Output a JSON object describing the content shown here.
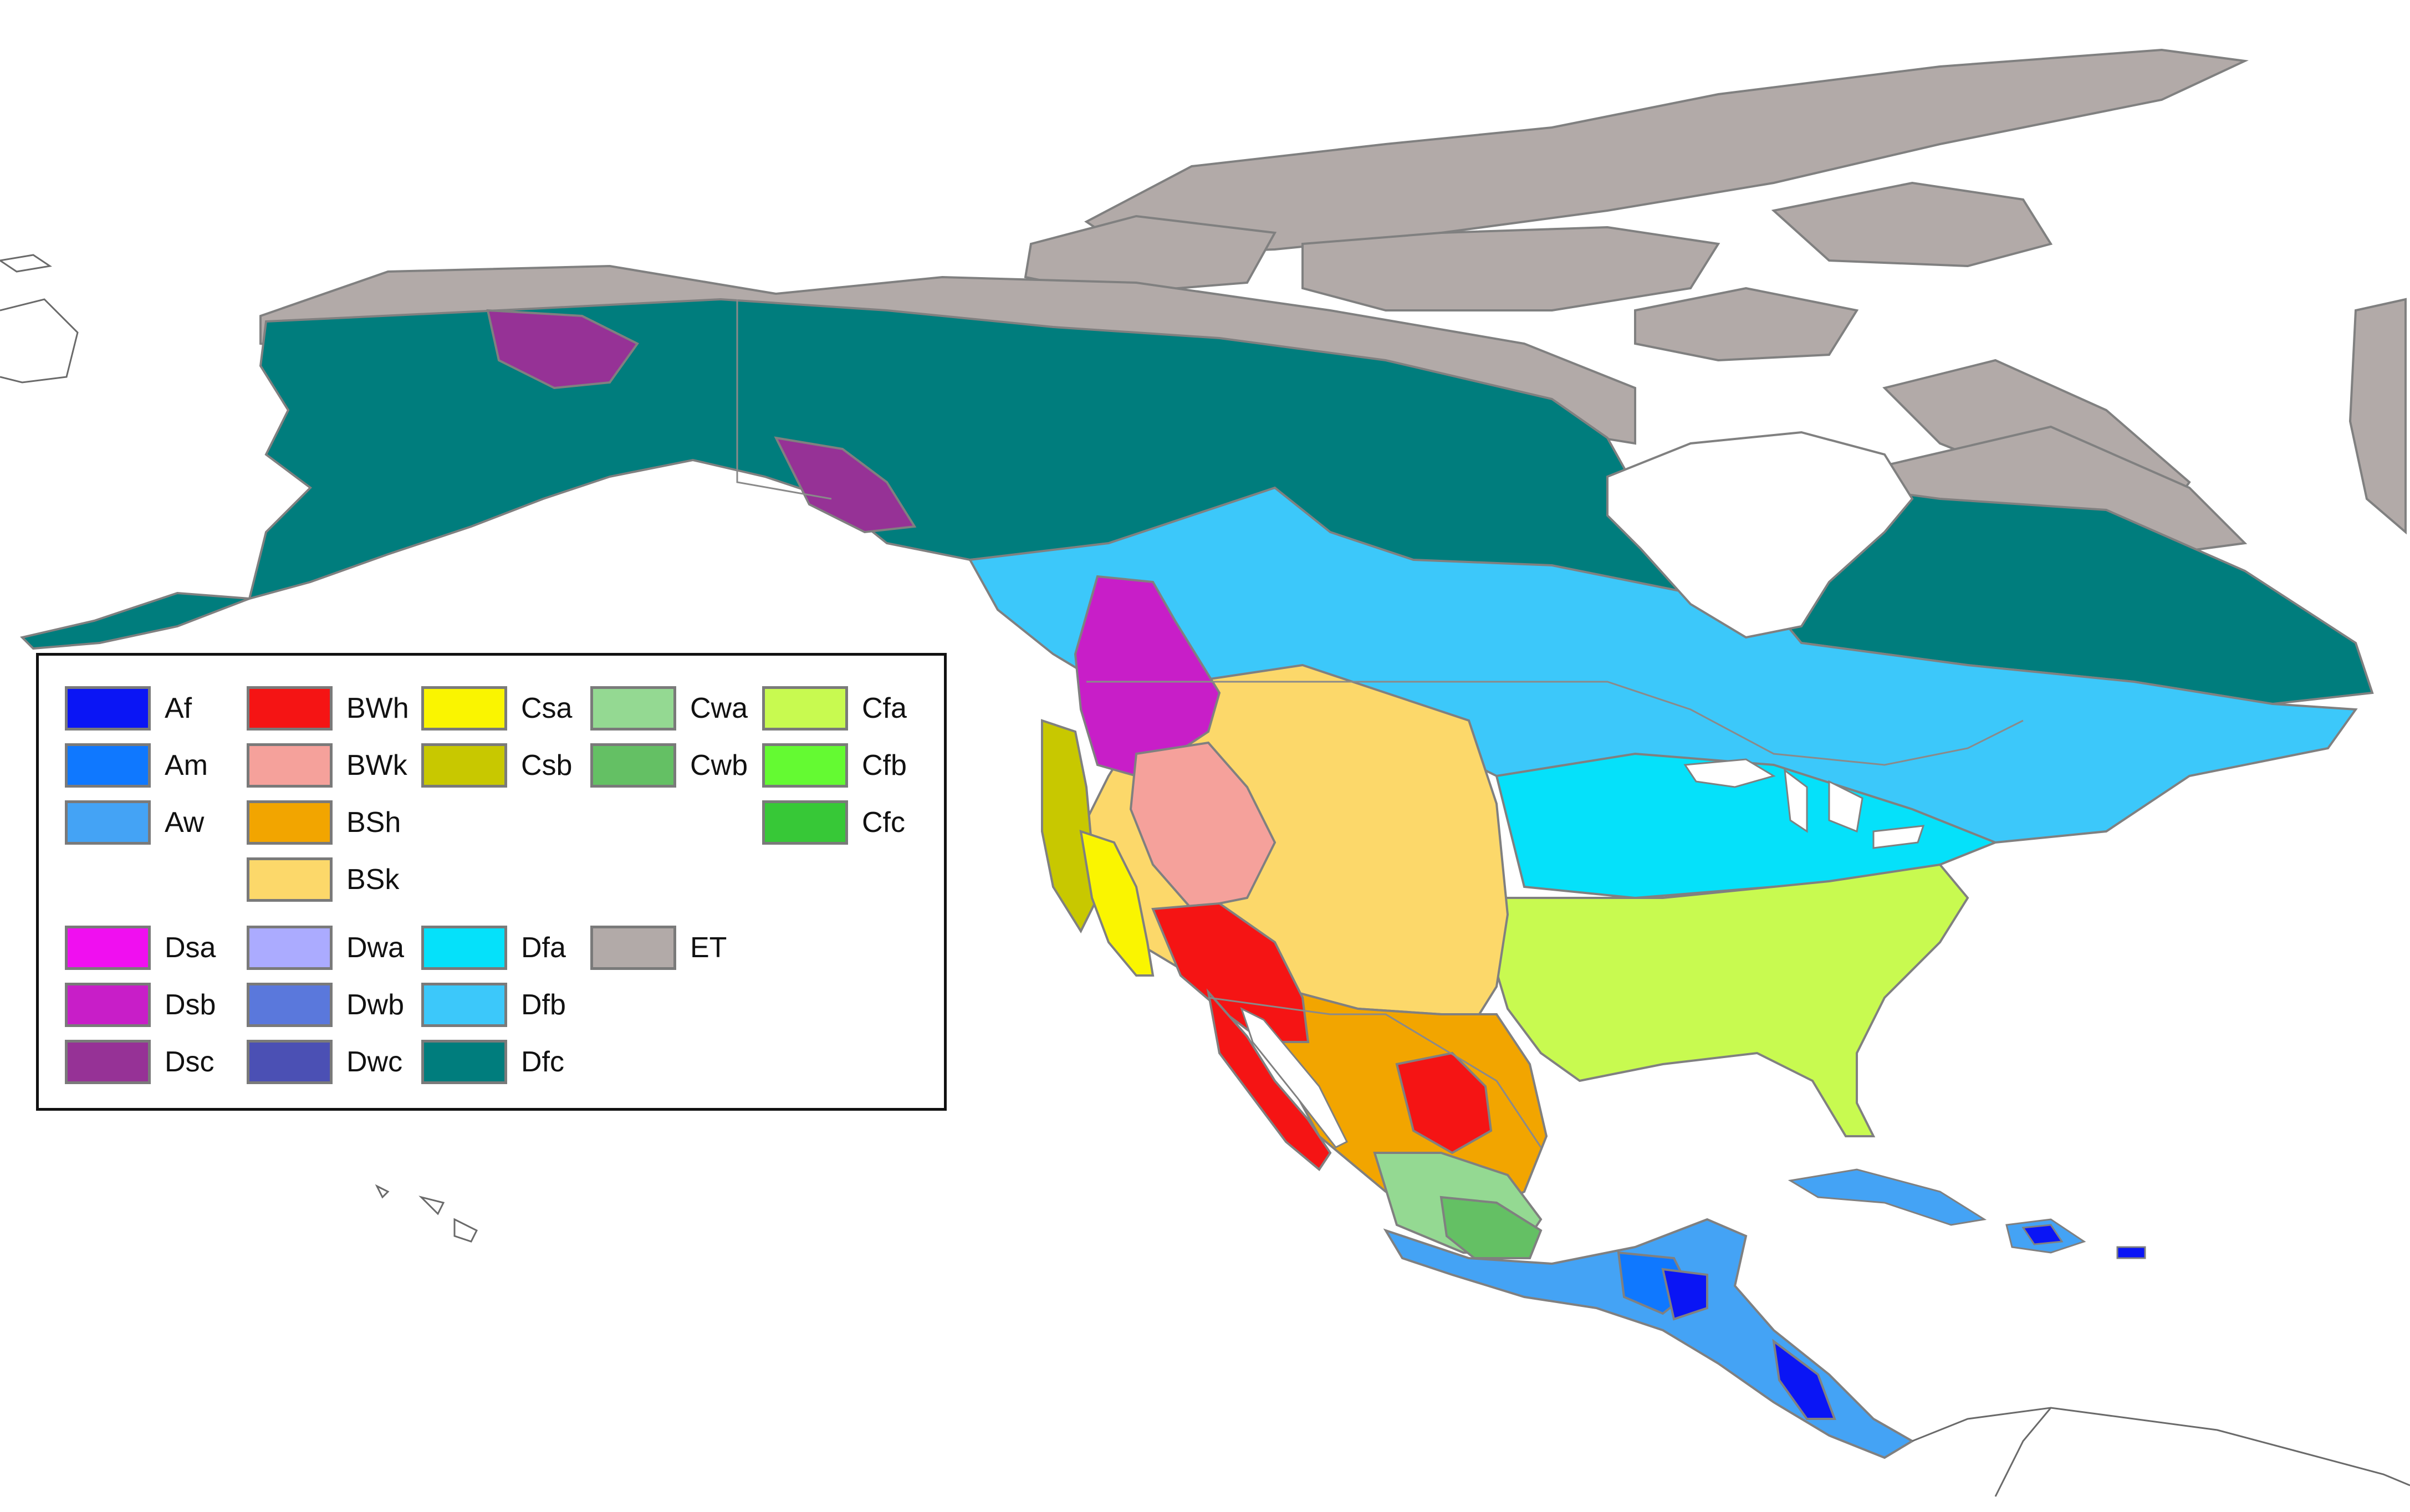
{
  "map": {
    "colors": {
      "ocean": "#ffffff",
      "ice_tundra": "#b2aaa8",
      "land_outline": "#808080",
      "foreign_land_outline": "#6a6a6a"
    }
  },
  "legend": {
    "items": [
      {
        "code": "Af",
        "color": "#0a15f5"
      },
      {
        "code": "Am",
        "color": "#0f78ff"
      },
      {
        "code": "Aw",
        "color": "#44a3f5"
      },
      {
        "code": "BWh",
        "color": "#f51414"
      },
      {
        "code": "BWk",
        "color": "#f5a19b"
      },
      {
        "code": "BSh",
        "color": "#f2a500"
      },
      {
        "code": "BSk",
        "color": "#fcd86a"
      },
      {
        "code": "Csa",
        "color": "#faf500"
      },
      {
        "code": "Csb",
        "color": "#c8c800"
      },
      {
        "code": "Cwa",
        "color": "#94d992"
      },
      {
        "code": "Cwb",
        "color": "#64c064"
      },
      {
        "code": "Cfa",
        "color": "#c8fa50"
      },
      {
        "code": "Cfb",
        "color": "#64fa32"
      },
      {
        "code": "Cfc",
        "color": "#37c837"
      },
      {
        "code": "Dsa",
        "color": "#f00ff0"
      },
      {
        "code": "Dsb",
        "color": "#c81ec8"
      },
      {
        "code": "Dsc",
        "color": "#963296"
      },
      {
        "code": "Dwa",
        "color": "#ababff"
      },
      {
        "code": "Dwb",
        "color": "#5a78dc"
      },
      {
        "code": "Dwc",
        "color": "#4b50b4"
      },
      {
        "code": "Dfa",
        "color": "#05e1fa"
      },
      {
        "code": "Dfb",
        "color": "#3cc8fa"
      },
      {
        "code": "Dfc",
        "color": "#007d7d"
      },
      {
        "code": "ET",
        "color": "#b2aaa8"
      }
    ]
  }
}
